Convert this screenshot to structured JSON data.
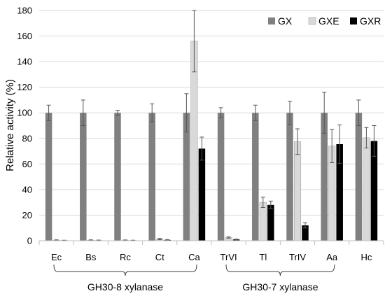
{
  "chart_data": {
    "type": "bar",
    "title": "",
    "ylabel": "Relative activity (%)",
    "ylim": [
      0,
      180
    ],
    "yticks": [
      0,
      20,
      40,
      60,
      80,
      100,
      120,
      140,
      160,
      180
    ],
    "grid": "horizontal",
    "legend_position": "top-right",
    "categories": [
      "Ec",
      "Bs",
      "Rc",
      "Ct",
      "Ca",
      "TrVI",
      "Tl",
      "TrIV",
      "Aa",
      "Hc"
    ],
    "series": [
      {
        "name": "GX",
        "color": "#808080",
        "values": [
          100,
          100,
          100,
          100,
          100,
          100,
          100,
          100,
          100,
          100
        ],
        "errors": [
          6,
          10,
          2,
          7,
          15,
          4,
          6,
          9,
          16,
          10
        ]
      },
      {
        "name": "GXE",
        "color": "#d9d9d9",
        "values": [
          0.4,
          0.4,
          0.3,
          1.3,
          156,
          2.5,
          30,
          77.5,
          74,
          80.5
        ],
        "errors": [
          0.3,
          0.3,
          0.3,
          0.5,
          24,
          0.5,
          4,
          10,
          13,
          8
        ]
      },
      {
        "name": "GXR",
        "color": "#000000",
        "values": [
          0.2,
          0.3,
          0.2,
          0.6,
          72,
          1,
          28,
          12,
          75.5,
          78
        ],
        "errors": [
          0.2,
          0.2,
          0.2,
          0.3,
          9,
          0.3,
          3,
          2,
          15,
          12
        ]
      }
    ],
    "groups": [
      {
        "label": "GH30-8 xylanase",
        "categories": [
          "Ec",
          "Bs",
          "Rc",
          "Ct",
          "Ca"
        ]
      },
      {
        "label": "GH30-7 xylanase",
        "categories": [
          "TrVI",
          "Tl",
          "TrIV",
          "Aa"
        ]
      }
    ]
  }
}
